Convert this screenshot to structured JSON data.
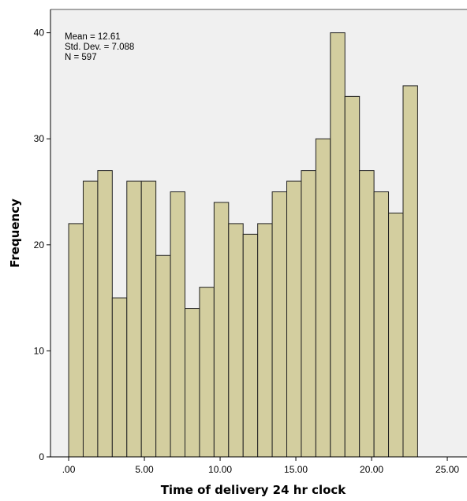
{
  "chart_data": {
    "type": "bar",
    "xlabel": "Time of delivery 24 hr clock",
    "ylabel": "Frequency",
    "xlim": [
      -1.2,
      26.3
    ],
    "ylim": [
      0,
      42.2
    ],
    "bin_width": 0.96,
    "x_ticks": [
      0,
      5,
      10,
      15,
      20,
      25
    ],
    "x_tick_labels": [
      ".00",
      "5.00",
      "10.00",
      "15.00",
      "20.00",
      "25.00"
    ],
    "y_ticks": [
      0,
      10,
      20,
      30,
      40
    ],
    "y_tick_labels": [
      "0",
      "10",
      "20",
      "30",
      "40"
    ],
    "bins": [
      {
        "start": 0.0,
        "value": 22
      },
      {
        "start": 0.96,
        "value": 26
      },
      {
        "start": 1.92,
        "value": 27
      },
      {
        "start": 2.88,
        "value": 15
      },
      {
        "start": 3.84,
        "value": 26
      },
      {
        "start": 4.8,
        "value": 26
      },
      {
        "start": 5.76,
        "value": 19
      },
      {
        "start": 6.72,
        "value": 25
      },
      {
        "start": 7.68,
        "value": 14
      },
      {
        "start": 8.64,
        "value": 16
      },
      {
        "start": 9.6,
        "value": 24
      },
      {
        "start": 10.56,
        "value": 22
      },
      {
        "start": 11.52,
        "value": 21
      },
      {
        "start": 12.48,
        "value": 22
      },
      {
        "start": 13.44,
        "value": 25
      },
      {
        "start": 14.4,
        "value": 26
      },
      {
        "start": 15.36,
        "value": 27
      },
      {
        "start": 16.32,
        "value": 30
      },
      {
        "start": 17.28,
        "value": 40
      },
      {
        "start": 18.24,
        "value": 34
      },
      {
        "start": 19.2,
        "value": 27
      },
      {
        "start": 20.16,
        "value": 25
      },
      {
        "start": 21.12,
        "value": 23
      },
      {
        "start": 22.08,
        "value": 35
      }
    ],
    "stats": {
      "mean": "Mean = 12.61",
      "std": "Std. Dev. = 7.088",
      "n": "N = 597"
    },
    "grid": false,
    "colors": {
      "plot_background": "#f0f0f0",
      "bar_fill": "#d3ce9f",
      "bar_stroke": "#222222",
      "axis": "#000000"
    }
  }
}
